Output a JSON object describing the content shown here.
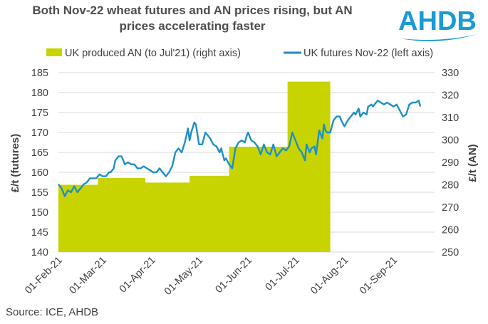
{
  "header": {
    "title_line1": "Both Nov-22 wheat futures and AN prices rising, but AN",
    "title_line2": "prices accelerating faster",
    "logo_text": "AHDB"
  },
  "source": "Source: ICE, AHDB",
  "colors": {
    "an_fill": "#c8d400",
    "futures_line": "#1d8fc9",
    "logo_blue": "#1a9ad6",
    "grid": "#d9d9d9"
  },
  "chart_data": {
    "type": "line+area",
    "title": "Both Nov-22 wheat futures and AN prices rising, but AN prices accelerating faster",
    "left_axis": {
      "label": "£/t (futures)",
      "min": 140,
      "max": 185,
      "ticks": [
        140,
        145,
        150,
        155,
        160,
        165,
        170,
        175,
        180,
        185
      ]
    },
    "right_axis": {
      "label": "£/t (AN)",
      "min": 250,
      "max": 330,
      "ticks": [
        250,
        260,
        270,
        280,
        290,
        300,
        310,
        320,
        330
      ]
    },
    "x_axis": {
      "type": "date",
      "start_day": 0,
      "end_day": 238,
      "ticks": [
        {
          "label": "01-Feb-21",
          "day": 0
        },
        {
          "label": "01-Mar-21",
          "day": 28
        },
        {
          "label": "01-Apr-21",
          "day": 59
        },
        {
          "label": "01-May-21",
          "day": 89
        },
        {
          "label": "01-Jun-21",
          "day": 120
        },
        {
          "label": "01-Jul-21",
          "day": 150
        },
        {
          "label": "01-Aug-21",
          "day": 181
        },
        {
          "label": "01-Sep-21",
          "day": 212
        }
      ]
    },
    "legend": {
      "position": "top",
      "an_label": "UK produced AN (to Jul'21) (right axis)",
      "futures_label": "UK futures Nov-22 (left axis)"
    },
    "series": [
      {
        "name": "UK produced AN (to Jul'21) (right axis)",
        "type": "step-area",
        "axis": "right",
        "steps": [
          {
            "start_day": 0,
            "end_day": 25,
            "value": 280
          },
          {
            "start_day": 25,
            "end_day": 55,
            "value": 283
          },
          {
            "start_day": 55,
            "end_day": 83,
            "value": 281
          },
          {
            "start_day": 83,
            "end_day": 108,
            "value": 284
          },
          {
            "start_day": 108,
            "end_day": 145,
            "value": 297
          },
          {
            "start_day": 145,
            "end_day": 172,
            "value": 326
          }
        ]
      },
      {
        "name": "UK futures Nov-22 (left axis)",
        "type": "line",
        "axis": "left",
        "points": [
          [
            0,
            157
          ],
          [
            2,
            156
          ],
          [
            4,
            154
          ],
          [
            6,
            155.5
          ],
          [
            8,
            155
          ],
          [
            10,
            156.5
          ],
          [
            12,
            155
          ],
          [
            14,
            156
          ],
          [
            16,
            157
          ],
          [
            18,
            157.5
          ],
          [
            20,
            158.5
          ],
          [
            22,
            158.5
          ],
          [
            24,
            158.5
          ],
          [
            26,
            159.5
          ],
          [
            28,
            159
          ],
          [
            30,
            159
          ],
          [
            32,
            160
          ],
          [
            33,
            160
          ],
          [
            35,
            161
          ],
          [
            36,
            163
          ],
          [
            38,
            164
          ],
          [
            40,
            164
          ],
          [
            42,
            162
          ],
          [
            44,
            162.5
          ],
          [
            46,
            162
          ],
          [
            48,
            162
          ],
          [
            50,
            161
          ],
          [
            52,
            161
          ],
          [
            54,
            161.5
          ],
          [
            56,
            161
          ],
          [
            58,
            160.5
          ],
          [
            60,
            160
          ],
          [
            62,
            160
          ],
          [
            64,
            161
          ],
          [
            66,
            160
          ],
          [
            68,
            159
          ],
          [
            70,
            160
          ],
          [
            72,
            161.5
          ],
          [
            74,
            165
          ],
          [
            76,
            166
          ],
          [
            78,
            165
          ],
          [
            80,
            167.5
          ],
          [
            82,
            171
          ],
          [
            83,
            168
          ],
          [
            84,
            170
          ],
          [
            86,
            172.5
          ],
          [
            87,
            172
          ],
          [
            89,
            167
          ],
          [
            91,
            167
          ],
          [
            93,
            170
          ],
          [
            95,
            169
          ],
          [
            96,
            168.5
          ],
          [
            98,
            167
          ],
          [
            100,
            166.5
          ],
          [
            102,
            165
          ],
          [
            103,
            166
          ],
          [
            105,
            163
          ],
          [
            106,
            163.5
          ],
          [
            108,
            162
          ],
          [
            110,
            161
          ],
          [
            112,
            166
          ],
          [
            114,
            167.5
          ],
          [
            116,
            168
          ],
          [
            118,
            167.5
          ],
          [
            119,
            169
          ],
          [
            120,
            170
          ],
          [
            122,
            168
          ],
          [
            124,
            167.5
          ],
          [
            126,
            166.5
          ],
          [
            128,
            164.5
          ],
          [
            130,
            167
          ],
          [
            132,
            165
          ],
          [
            134,
            164.5
          ],
          [
            136,
            167
          ],
          [
            138,
            164
          ],
          [
            140,
            165
          ],
          [
            142,
            166
          ],
          [
            144,
            165.5
          ],
          [
            146,
            166.5
          ],
          [
            148,
            170
          ],
          [
            150,
            168
          ],
          [
            152,
            166
          ],
          [
            154,
            165
          ],
          [
            156,
            163
          ],
          [
            157,
            167
          ],
          [
            159,
            165
          ],
          [
            160,
            166
          ],
          [
            162,
            166.5
          ],
          [
            163,
            164.5
          ],
          [
            165,
            170.5
          ],
          [
            167,
            168.5
          ],
          [
            168,
            172
          ],
          [
            169,
            170.5
          ],
          [
            170,
            170
          ],
          [
            172,
            170
          ],
          [
            174,
            173
          ],
          [
            176,
            174
          ],
          [
            178,
            174
          ],
          [
            179,
            173
          ],
          [
            181,
            171.5
          ],
          [
            183,
            173
          ],
          [
            185,
            174
          ],
          [
            187,
            175
          ],
          [
            188,
            174.5
          ],
          [
            190,
            176
          ],
          [
            191,
            174
          ],
          [
            193,
            175
          ],
          [
            195,
            174.5
          ],
          [
            196,
            176.5
          ],
          [
            198,
            177
          ],
          [
            199,
            176.5
          ],
          [
            200,
            177
          ],
          [
            202,
            178
          ],
          [
            204,
            177.5
          ],
          [
            206,
            177
          ],
          [
            208,
            177.5
          ],
          [
            210,
            177
          ],
          [
            212,
            176.5
          ],
          [
            214,
            177
          ],
          [
            216,
            175.5
          ],
          [
            218,
            174
          ],
          [
            220,
            174.5
          ],
          [
            222,
            177
          ],
          [
            224,
            177.5
          ],
          [
            226,
            177.5
          ],
          [
            228,
            178
          ],
          [
            229,
            176.5
          ]
        ]
      }
    ]
  }
}
